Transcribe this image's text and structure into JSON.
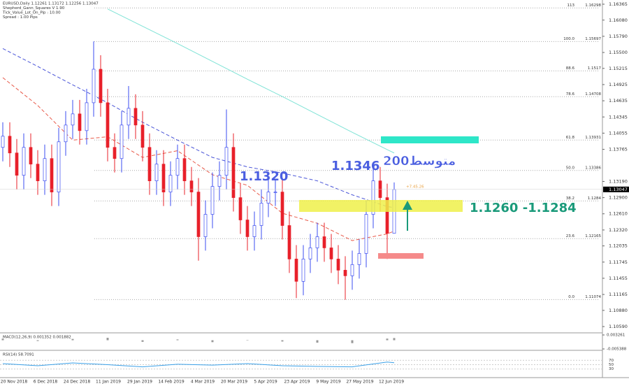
{
  "chart_data": {
    "type": "candlestick",
    "header": [
      "EURUSD,Daily  1.12261 1.13172 1.12256 1.13047",
      "Shepherd_Gann_Squares V 1.90",
      "Tick_Value_Lot_On_Pip : 10.00",
      "Spread : 1.00  Pips"
    ],
    "open": [
      1.138,
      1.14,
      1.137,
      1.133,
      1.138,
      1.135,
      1.132,
      1.136,
      1.13,
      1.139,
      1.142,
      1.144,
      1.141,
      1.146,
      1.152,
      1.146,
      1.138,
      1.136,
      1.142,
      1.145,
      1.142,
      1.138,
      1.132,
      1.135,
      1.13,
      1.133,
      1.136,
      1.132,
      1.13,
      1.122,
      1.126,
      1.131,
      1.133,
      1.138,
      1.129,
      1.125,
      1.122,
      1.124,
      1.128,
      1.13,
      1.13,
      1.124,
      1.118,
      1.114,
      1.118,
      1.12,
      1.122,
      1.12,
      1.118,
      1.116,
      1.115,
      1.117,
      1.119,
      1.126,
      1.132,
      1.129,
      1.12261
    ],
    "high": [
      1.1425,
      1.1425,
      1.1395,
      1.1405,
      1.1405,
      1.1375,
      1.1385,
      1.1385,
      1.1415,
      1.1445,
      1.1465,
      1.1465,
      1.1485,
      1.157,
      1.1545,
      1.1485,
      1.1405,
      1.1445,
      1.149,
      1.1475,
      1.1445,
      1.1405,
      1.1375,
      1.1375,
      1.1355,
      1.1385,
      1.1385,
      1.1345,
      1.1325,
      1.1285,
      1.1335,
      1.1355,
      1.1448,
      1.1405,
      1.1315,
      1.1275,
      1.1265,
      1.1305,
      1.1325,
      1.1323,
      1.1325,
      1.1265,
      1.1205,
      1.1205,
      1.1225,
      1.1245,
      1.1245,
      1.1225,
      1.1205,
      1.1185,
      1.1195,
      1.1215,
      1.1285,
      1.1347,
      1.1345,
      1.1315,
      1.13172
    ],
    "low": [
      1.1355,
      1.1345,
      1.1305,
      1.1305,
      1.1325,
      1.1295,
      1.1295,
      1.1275,
      1.1275,
      1.1365,
      1.1395,
      1.1385,
      1.1385,
      1.1435,
      1.1435,
      1.1355,
      1.1335,
      1.1335,
      1.1395,
      1.1395,
      1.1355,
      1.1295,
      1.1295,
      1.1275,
      1.1275,
      1.1305,
      1.1295,
      1.1275,
      1.1177,
      1.1195,
      1.1235,
      1.1285,
      1.1305,
      1.1265,
      1.1225,
      1.1195,
      1.1195,
      1.1215,
      1.1255,
      1.1275,
      1.1215,
      1.1155,
      1.111,
      1.1115,
      1.1155,
      1.1175,
      1.1175,
      1.1155,
      1.1135,
      1.1107,
      1.1125,
      1.1145,
      1.1165,
      1.1235,
      1.1265,
      1.118,
      1.12256
    ],
    "close": [
      1.14,
      1.137,
      1.133,
      1.138,
      1.135,
      1.132,
      1.136,
      1.13,
      1.139,
      1.142,
      1.144,
      1.141,
      1.146,
      1.152,
      1.146,
      1.138,
      1.136,
      1.142,
      1.145,
      1.142,
      1.138,
      1.132,
      1.135,
      1.13,
      1.133,
      1.136,
      1.132,
      1.13,
      1.122,
      1.126,
      1.131,
      1.133,
      1.138,
      1.129,
      1.125,
      1.122,
      1.124,
      1.128,
      1.13,
      1.13,
      1.124,
      1.118,
      1.114,
      1.118,
      1.12,
      1.122,
      1.12,
      1.118,
      1.116,
      1.115,
      1.117,
      1.119,
      1.126,
      1.132,
      1.129,
      1.1226,
      1.13047
    ],
    "up_color": "#3b4cf0",
    "down_color": "#e8202a",
    "ma_x": [
      0,
      5,
      10,
      15,
      20,
      25,
      30,
      35,
      40,
      45,
      50,
      55,
      56
    ],
    "ma_series": [
      {
        "color": "#7fe3d6",
        "dash": false,
        "values": [
          null,
          null,
          null,
          1.1628,
          1.1597,
          1.1566,
          1.1534,
          1.1502,
          1.1471,
          1.1439,
          1.1407,
          1.1376,
          1.137
        ]
      },
      {
        "color": "#4a55d8",
        "dash": true,
        "values": [
          1.1557,
          1.1525,
          1.1492,
          1.146,
          1.1425,
          1.1393,
          1.1362,
          1.1345,
          1.1334,
          1.132,
          1.1295,
          1.1274,
          1.1272
        ]
      },
      {
        "color": "#e85a4a",
        "dash": true,
        "values": [
          1.1505,
          1.1455,
          1.1393,
          1.1399,
          1.1362,
          1.1374,
          1.1331,
          1.1312,
          1.1262,
          1.1244,
          1.1213,
          1.1225,
          1.123
        ]
      }
    ],
    "ylim": [
      1.1059,
      1.16365
    ],
    "yticks": [
      {
        "value": 1.16365,
        "label": "1.16365"
      },
      {
        "value": 1.1608,
        "label": "1.16080"
      },
      {
        "value": 1.1579,
        "label": "1.15790"
      },
      {
        "value": 1.155,
        "label": "1.15500"
      },
      {
        "value": 1.15215,
        "label": "1.15215"
      },
      {
        "value": 1.14925,
        "label": "1.14925"
      },
      {
        "value": 1.14635,
        "label": "1.14635"
      },
      {
        "value": 1.14345,
        "label": "1.14345"
      },
      {
        "value": 1.14055,
        "label": "1.14055"
      },
      {
        "value": 1.13765,
        "label": "1.13765"
      },
      {
        "value": 1.1319,
        "label": "1.13190"
      },
      {
        "value": 1.129,
        "label": "1.12900"
      },
      {
        "value": 1.1261,
        "label": "1.12610"
      },
      {
        "value": 1.1232,
        "label": "1.12320"
      },
      {
        "value": 1.12035,
        "label": "1.12035"
      },
      {
        "value": 1.11745,
        "label": "1.11745"
      },
      {
        "value": 1.11455,
        "label": "1.11455"
      },
      {
        "value": 1.11165,
        "label": "1.11165"
      },
      {
        "value": 1.1088,
        "label": "1.10880"
      },
      {
        "value": 1.1059,
        "label": "1.10590"
      }
    ],
    "fibo": [
      {
        "level": "113",
        "price": 1.16298
      },
      {
        "level": "100.0",
        "price": 1.15697
      },
      {
        "level": "88.6",
        "price": 1.1517
      },
      {
        "level": "78.6",
        "price": 1.14708
      },
      {
        "level": "61.8",
        "price": 1.13931
      },
      {
        "level": "50.0",
        "price": 1.13386
      },
      {
        "level": "38.2",
        "price": 1.1284
      },
      {
        "level": "23.6",
        "price": 1.12165
      },
      {
        "level": "0.0",
        "price": 1.11074
      }
    ],
    "annotations": [
      "1.1320",
      "1.1346",
      "200متوسط",
      "1.1260 -1.1284",
      "+7.45.26"
    ],
    "dates": [
      "20 Nov 2018",
      "6 Dec 2018",
      "24 Dec 2018",
      "11 Jan 2019",
      "29 Jan 2019",
      "14 Feb 2019",
      "4 Mar 2019",
      "20 Mar 2019",
      "5 Apr 2019",
      "23 Apr 2019",
      "9 May 2019",
      "27 May 2019",
      "12 Jun 2019"
    ],
    "macd": {
      "label": "MACD(12,26,9) 0.001352 0.001882",
      "ylim": [
        -0.005388,
        0.003261
      ],
      "yticks": [
        0.003261,
        -0.005388
      ],
      "values": [
        0.001,
        -0.0005,
        0.0008,
        0.0015,
        -0.001,
        0.0005,
        -0.0012,
        0.0002,
        -0.0008,
        -0.0015,
        -0.0018,
        0.001,
        0.001352
      ]
    },
    "rsi": {
      "label": "RSI(14) 58.7091",
      "ylim": [
        0,
        100
      ],
      "yticks": [
        70,
        50,
        30
      ],
      "values": [
        55,
        45,
        58,
        50,
        40,
        52,
        48,
        55,
        45,
        42,
        40,
        62,
        58.7091
      ]
    }
  }
}
